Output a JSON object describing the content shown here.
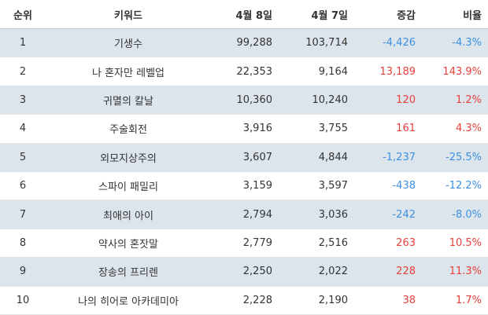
{
  "table": {
    "headers": {
      "rank": "순위",
      "keyword": "키워드",
      "apr8": "4월 8일",
      "apr7": "4월 7일",
      "change": "증감",
      "ratio": "비율"
    },
    "rows": [
      {
        "rank": "1",
        "keyword": "기생수",
        "apr8": "99,288",
        "apr7": "103,714",
        "change": "-4,426",
        "ratio": "-4.3%",
        "trend": "down"
      },
      {
        "rank": "2",
        "keyword": "나 혼자만 레벨업",
        "apr8": "22,353",
        "apr7": "9,164",
        "change": "13,189",
        "ratio": "143.9%",
        "trend": "up"
      },
      {
        "rank": "3",
        "keyword": "귀멸의 칼날",
        "apr8": "10,360",
        "apr7": "10,240",
        "change": "120",
        "ratio": "1.2%",
        "trend": "up"
      },
      {
        "rank": "4",
        "keyword": "주술회전",
        "apr8": "3,916",
        "apr7": "3,755",
        "change": "161",
        "ratio": "4.3%",
        "trend": "up"
      },
      {
        "rank": "5",
        "keyword": "외모지상주의",
        "apr8": "3,607",
        "apr7": "4,844",
        "change": "-1,237",
        "ratio": "-25.5%",
        "trend": "down"
      },
      {
        "rank": "6",
        "keyword": "스파이 패밀리",
        "apr8": "3,159",
        "apr7": "3,597",
        "change": "-438",
        "ratio": "-12.2%",
        "trend": "down"
      },
      {
        "rank": "7",
        "keyword": "최애의 아이",
        "apr8": "2,794",
        "apr7": "3,036",
        "change": "-242",
        "ratio": "-8.0%",
        "trend": "down"
      },
      {
        "rank": "8",
        "keyword": "약사의 혼잣말",
        "apr8": "2,779",
        "apr7": "2,516",
        "change": "263",
        "ratio": "10.5%",
        "trend": "up"
      },
      {
        "rank": "9",
        "keyword": "장송의 프리렌",
        "apr8": "2,250",
        "apr7": "2,022",
        "change": "228",
        "ratio": "11.3%",
        "trend": "up"
      },
      {
        "rank": "10",
        "keyword": "나의 히어로 아카데미아",
        "apr8": "2,228",
        "apr7": "2,190",
        "change": "38",
        "ratio": "1.7%",
        "trend": "up"
      }
    ]
  },
  "colors": {
    "increase": "#e8403a",
    "decrease": "#3d8fe0",
    "shaded_row": "#dde5ec"
  }
}
